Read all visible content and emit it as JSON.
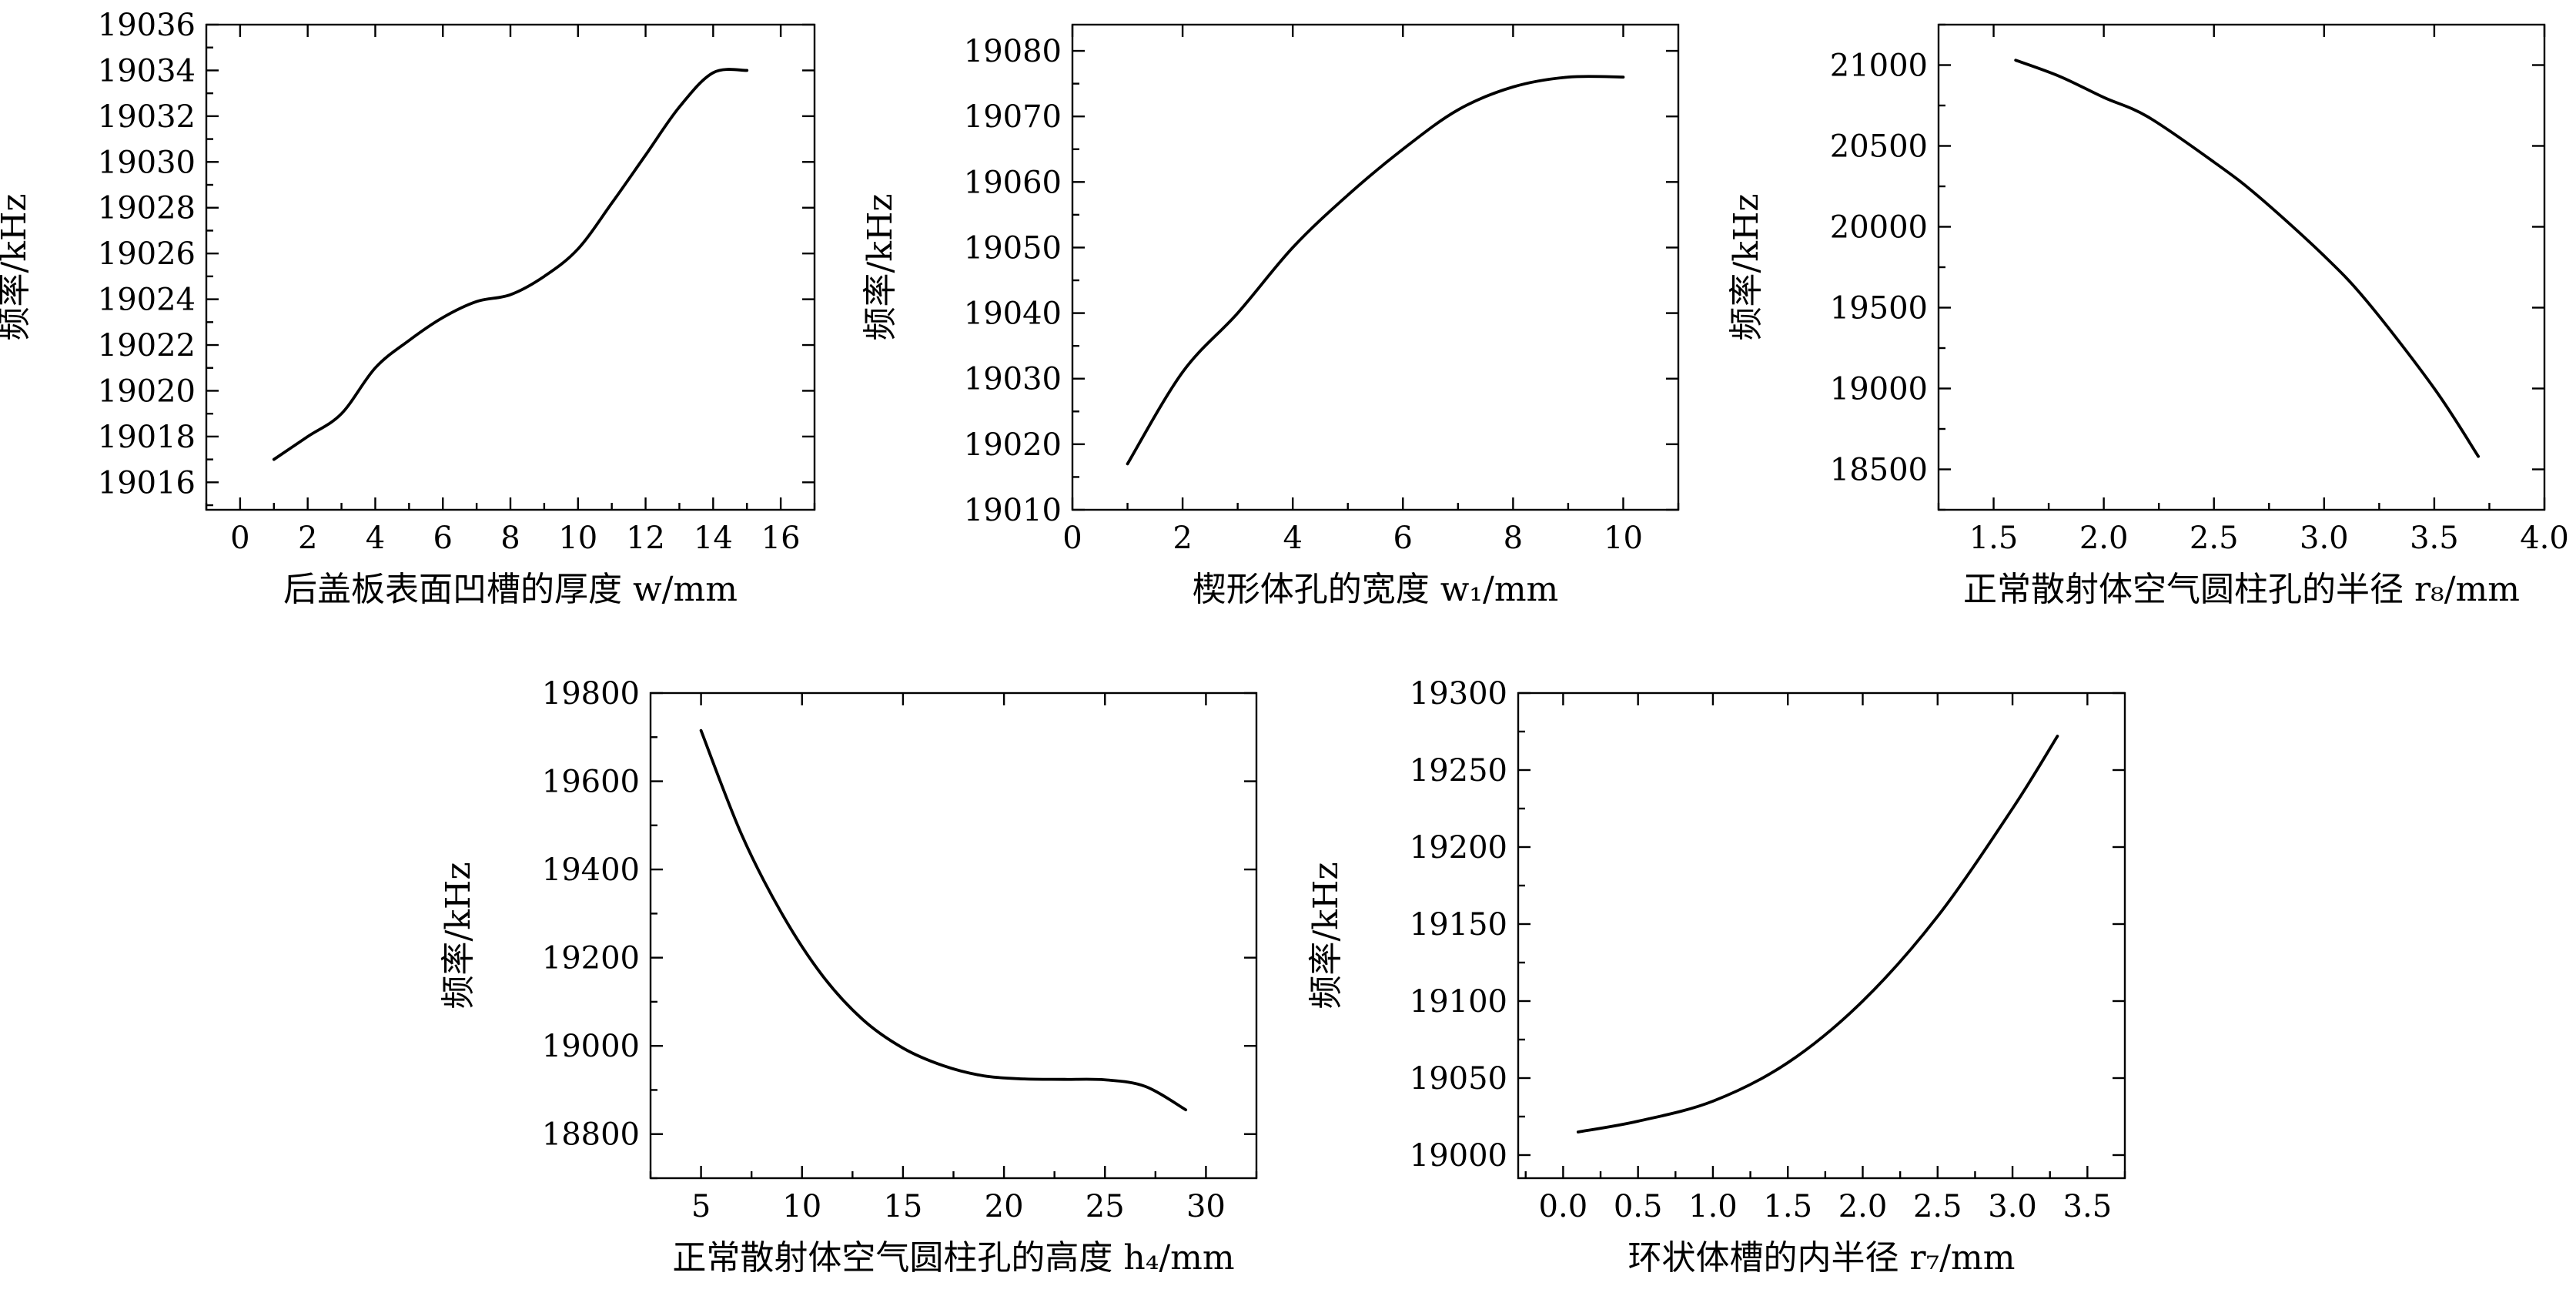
{
  "chart_data": [
    {
      "type": "line",
      "title": "",
      "xlabel": "后盖板表面凹槽的厚度 w/mm",
      "ylabel": "频率/kHz",
      "xlim": [
        -1,
        17
      ],
      "ylim": [
        19014.8,
        19036
      ],
      "x_ticks": [
        0,
        2,
        4,
        6,
        8,
        10,
        12,
        14,
        16
      ],
      "y_ticks": [
        19016,
        19018,
        19020,
        19022,
        19024,
        19026,
        19028,
        19030,
        19032,
        19034,
        19036
      ],
      "grid": false,
      "legend": "none",
      "series": [
        {
          "x": [
            1,
            2,
            3,
            4,
            5,
            6,
            7,
            8,
            9,
            10,
            11,
            12,
            13,
            14,
            15
          ],
          "values": [
            19017.0,
            19018.0,
            19019.0,
            19021.0,
            19022.2,
            19023.2,
            19023.9,
            19024.2,
            19025.0,
            19026.2,
            19028.2,
            19030.3,
            19032.4,
            19033.9,
            19034.0
          ]
        }
      ]
    },
    {
      "type": "line",
      "title": "",
      "xlabel": "楔形体孔的宽度 w₁/mm",
      "ylabel": "频率/kHz",
      "xlim": [
        0,
        11
      ],
      "ylim": [
        19010,
        19084
      ],
      "x_ticks": [
        0,
        2,
        4,
        6,
        8,
        10
      ],
      "y_ticks": [
        19010,
        19020,
        19030,
        19040,
        19050,
        19060,
        19070,
        19080
      ],
      "grid": false,
      "legend": "none",
      "series": [
        {
          "x": [
            1,
            2,
            3,
            4,
            5,
            6,
            7,
            8,
            9,
            10
          ],
          "values": [
            19017,
            19031,
            19040,
            19050,
            19058,
            19065,
            19071,
            19074.5,
            19076,
            19076
          ]
        }
      ]
    },
    {
      "type": "line",
      "title": "",
      "xlabel": "正常散射体空气圆柱孔的半径 r₈/mm",
      "ylabel": "频率/kHz",
      "xlim": [
        1.25,
        4.0
      ],
      "ylim": [
        18250,
        21250
      ],
      "x_ticks": [
        1.5,
        2.0,
        2.5,
        3.0,
        3.5,
        4.0
      ],
      "y_ticks": [
        18500,
        19000,
        19500,
        20000,
        20500,
        21000
      ],
      "grid": false,
      "legend": "none",
      "series": [
        {
          "x": [
            1.6,
            1.8,
            2.0,
            2.2,
            2.5,
            2.7,
            3.0,
            3.2,
            3.5,
            3.7
          ],
          "values": [
            21030,
            20930,
            20800,
            20680,
            20400,
            20190,
            19820,
            19530,
            19000,
            18580
          ]
        }
      ]
    },
    {
      "type": "line",
      "title": "",
      "xlabel": "正常散射体空气圆柱孔的高度 h₄/mm",
      "ylabel": "频率/kHz",
      "xlim": [
        2.5,
        32.5
      ],
      "ylim": [
        18700,
        19800
      ],
      "x_ticks": [
        5,
        10,
        15,
        20,
        25,
        30
      ],
      "y_ticks": [
        18800,
        19000,
        19200,
        19400,
        19600,
        19800
      ],
      "grid": false,
      "legend": "none",
      "series": [
        {
          "x": [
            5,
            7,
            9,
            11,
            13,
            15,
            17,
            19,
            21,
            23,
            25,
            27,
            29
          ],
          "values": [
            19715,
            19480,
            19300,
            19160,
            19060,
            18995,
            18955,
            18932,
            18925,
            18924,
            18923,
            18908,
            18855
          ]
        }
      ]
    },
    {
      "type": "line",
      "title": "",
      "xlabel": "环状体槽的内半径 r₇/mm",
      "ylabel": "频率/kHz",
      "xlim": [
        -0.3,
        3.75
      ],
      "ylim": [
        18985,
        19300
      ],
      "x_ticks": [
        0,
        0.5,
        1.0,
        1.5,
        2.0,
        2.5,
        3.0,
        3.5
      ],
      "y_ticks": [
        19000,
        19050,
        19100,
        19150,
        19200,
        19250,
        19300
      ],
      "grid": false,
      "legend": "none",
      "series": [
        {
          "x": [
            0.1,
            0.5,
            1.0,
            1.5,
            2.0,
            2.5,
            3.0,
            3.3
          ],
          "values": [
            19015,
            19022,
            19035,
            19060,
            19100,
            19155,
            19225,
            19272
          ]
        }
      ]
    }
  ]
}
